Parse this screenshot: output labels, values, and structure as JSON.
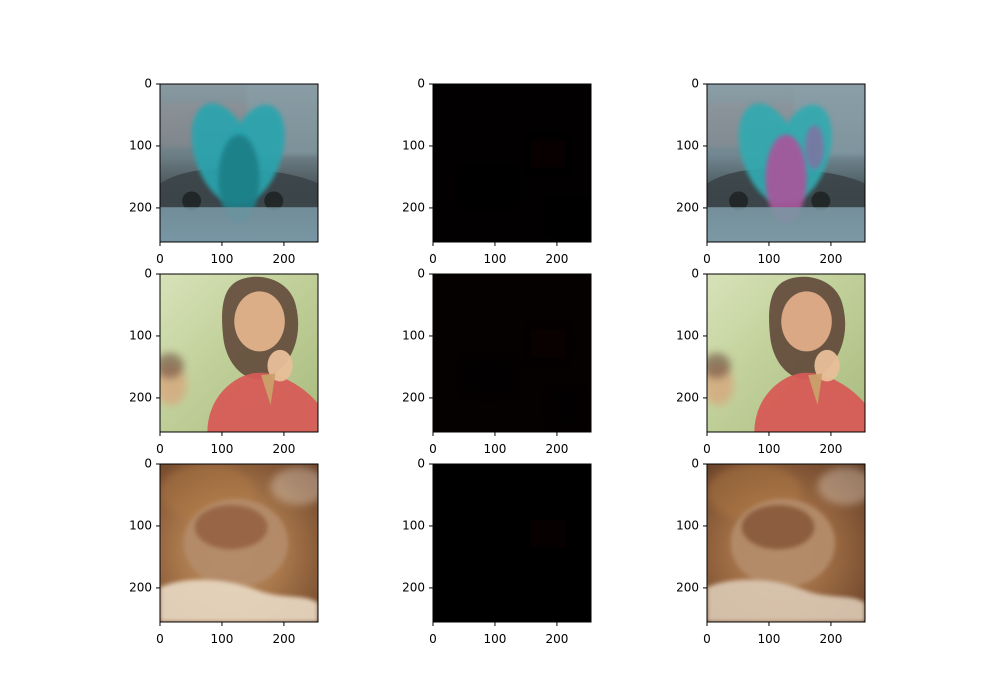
{
  "chart_data": {
    "type": "image-grid",
    "rows": 3,
    "cols": 3,
    "xlim": [
      0,
      255
    ],
    "ylim": [
      255,
      0
    ],
    "xticks": [
      0,
      100,
      200
    ],
    "yticks": [
      0,
      100,
      200
    ],
    "panels": [
      {
        "id": "r1c1",
        "content": "photo: street, person with teal feather wings, car",
        "palette": {
          "bg": "#6b7f8c",
          "top": "#8a9aa2",
          "mid": "#3f4a50",
          "bottom": "#7896a3",
          "accent": "#2aa4ae",
          "accent2": "#1d7f88"
        }
      },
      {
        "id": "r1c2",
        "content": "dark map (near black)",
        "palette": {
          "bg": "#020000"
        }
      },
      {
        "id": "r1c3",
        "content": "photo: street, person with teal feather wings, car",
        "palette": {
          "bg": "#6e8590",
          "top": "#8c9ea6",
          "mid": "#424d52",
          "bottom": "#7b99a5",
          "accent": "#33aab0",
          "accent2": "#a8569b"
        }
      },
      {
        "id": "r2c1",
        "content": "photo: girl eating ice cream",
        "palette": {
          "bg": "#c9d9a3",
          "top": "#d7e0b8",
          "mid": "#b7c98d",
          "bottom": "#9fb46f",
          "accent": "#d65c57",
          "skin": "#e3b38c",
          "hair": "#5c4234"
        }
      },
      {
        "id": "r2c2",
        "content": "dark map (near black)",
        "palette": {
          "bg": "#050101"
        }
      },
      {
        "id": "r2c3",
        "content": "photo: girl eating ice cream",
        "palette": {
          "bg": "#cad5a5",
          "top": "#d5dcba",
          "mid": "#b5c48f",
          "bottom": "#a2b374",
          "accent": "#d65b56",
          "skin": "#e0ad88",
          "hair": "#5a4034"
        }
      },
      {
        "id": "r3c1",
        "content": "photo: close-up of a pastry",
        "palette": {
          "bg": "#9a6a3c",
          "top": "#7a4d2b",
          "mid": "#b7895b",
          "bottom": "#d8c2a8",
          "accent": "#8f5a3a",
          "cream": "#e8d8c2"
        }
      },
      {
        "id": "r3c2",
        "content": "dark map (near black)",
        "palette": {
          "bg": "#010000"
        }
      },
      {
        "id": "r3c3",
        "content": "photo: close-up of a pastry",
        "palette": {
          "bg": "#8d5f38",
          "top": "#6f452a",
          "mid": "#ad7f53",
          "bottom": "#cbb59d",
          "accent": "#7f4f33",
          "cream": "#dbc8b3"
        }
      }
    ],
    "style": {
      "axis_color": "#000000",
      "tick_label_color": "#000000"
    }
  }
}
